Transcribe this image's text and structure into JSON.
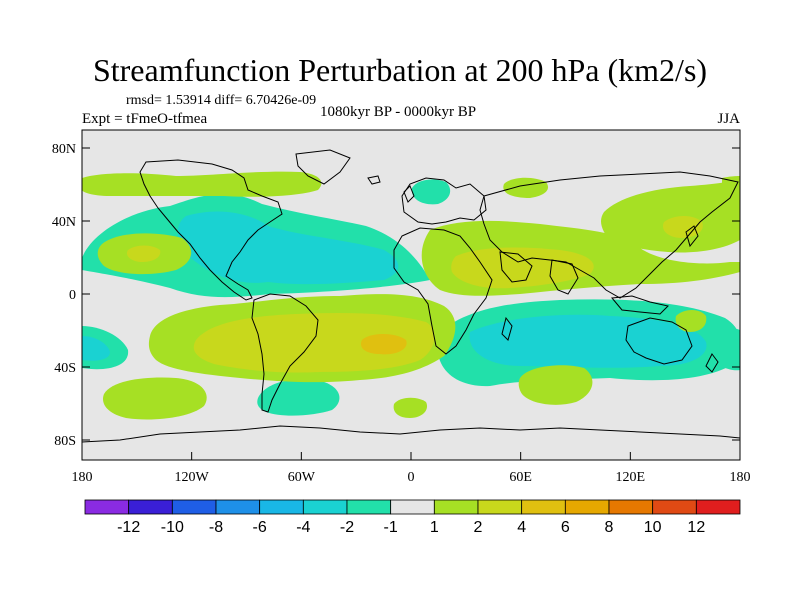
{
  "title": "Streamfunction Perturbation at 200 hPa (km2/s)",
  "stats_line": "rmsd= 1.53914 diff= 6.70426e-09",
  "experiment_label": "Expt = tFmeO-tfmea",
  "period_label": "1080kyr BP - 0000kyr BP",
  "season_label": "JJA",
  "axes": {
    "lat_ticks": [
      "80N",
      "40N",
      "0",
      "40S",
      "80S"
    ],
    "lon_ticks": [
      "180",
      "120W",
      "60W",
      "0",
      "60E",
      "120E",
      "180"
    ]
  },
  "colorbar": {
    "colors": [
      "#8a2be2",
      "#3a1fd6",
      "#1f5ee6",
      "#1e90e8",
      "#19b7e6",
      "#1ad2d2",
      "#22e0aa",
      "#e6e6e6",
      "#a6e024",
      "#c8d81c",
      "#e0c010",
      "#e6a800",
      "#e67800",
      "#e04a14",
      "#e01e1e"
    ],
    "labels": [
      "-12",
      "-10",
      "-8",
      "-6",
      "-4",
      "-2",
      "-1",
      "1",
      "2",
      "4",
      "6",
      "8",
      "10",
      "12"
    ]
  },
  "fill_colors": {
    "background": "#e6e6e6",
    "pos1": "#a6e024",
    "pos2": "#c8d81c",
    "pos3": "#e0c010",
    "neg1": "#22e0aa",
    "neg2": "#1ad2d2",
    "neg3": "#19b7e6"
  }
}
